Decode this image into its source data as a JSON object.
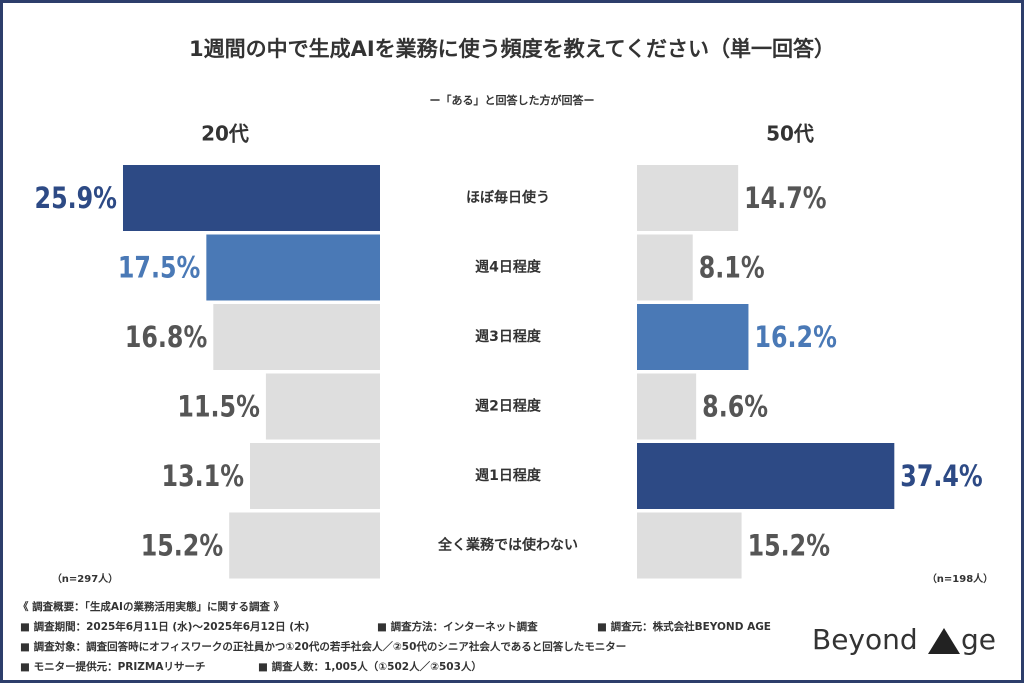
{
  "chart_data": {
    "type": "butterfly",
    "title": "1週間の中で生成AIを業務に使う頻度を教えてください（単一回答）",
    "subtitle": "ー「ある」と回答した方が回答ー",
    "categories": [
      "ほぼ毎日使う",
      "週4日程度",
      "週3日程度",
      "週2日程度",
      "週1日程度",
      "全く業務では使わない"
    ],
    "series": [
      {
        "name": "20代",
        "note": "（n=297人）",
        "xlim": [
          0,
          26
        ],
        "values": [
          25.9,
          17.5,
          16.8,
          11.5,
          13.1,
          15.2
        ],
        "value_labels": [
          "25.9%",
          "17.5%",
          "16.8%",
          "11.5%",
          "13.1%",
          "15.2%"
        ],
        "colors": [
          "#2d4a85",
          "#4a79b6",
          "#dedede",
          "#dedede",
          "#dedede",
          "#dedede"
        ]
      },
      {
        "name": "50代",
        "note": "（n=198人）",
        "xlim": [
          0,
          37.5
        ],
        "values": [
          14.7,
          8.1,
          16.2,
          8.6,
          37.4,
          15.2
        ],
        "value_labels": [
          "14.7%",
          "8.1%",
          "16.2%",
          "8.6%",
          "37.4%",
          "15.2%"
        ],
        "colors": [
          "#dedede",
          "#dedede",
          "#4a79b6",
          "#dedede",
          "#2d4a85",
          "#dedede"
        ]
      }
    ]
  },
  "footer": [
    [
      "《 調査概要：「生成AIの業務活用実態」に関する調査 》"
    ],
    [
      "■ 調査期間：2025年6月11日 (水)〜2025年6月12日 (木)",
      "■ 調査方法：インターネット調査",
      "■ 調査元：株式会社BEYOND AGE"
    ],
    [
      "■ 調査対象：調査回答時にオフィスワークの正社員かつ①20代の若手社会人／②50代のシニア社会人であると回答したモニター"
    ],
    [
      "■ モニター提供元：PRIZMAリサーチ",
      "■ 調査人数：1,005人（①502人／②503人）"
    ]
  ],
  "logo": [
    "Beyond",
    "ge"
  ]
}
